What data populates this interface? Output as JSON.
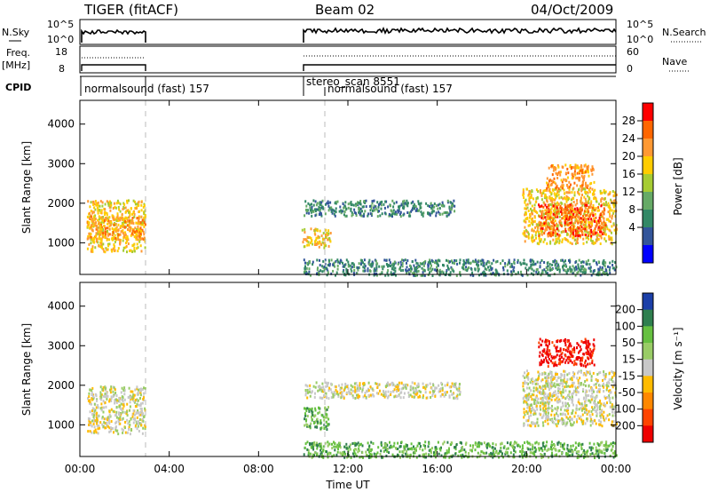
{
  "header": {
    "radar": "TIGER (fitACF)",
    "beam": "Beam 02",
    "date": "04/Oct/2009"
  },
  "top_panels": {
    "nsky_label": "N.Sky",
    "nsearch_label": "N.Search",
    "freq_label_1": "Freq.",
    "freq_label_2": "[MHz]",
    "nave_label": "Nave",
    "cpid_label": "CPID",
    "nsky_ticks": [
      "10^5",
      "10^0"
    ],
    "freq_ticks": [
      "18",
      "8"
    ],
    "nave_ticks": [
      "60",
      "0"
    ],
    "cpid_entries": [
      {
        "label": "normalsound (fast) 157"
      },
      {
        "label": "stereo_scan 8551"
      },
      {
        "label": "normalsound (fast) 157"
      }
    ]
  },
  "xaxis": {
    "title": "Time UT",
    "ticks": [
      "00:00",
      "04:00",
      "08:00",
      "12:00",
      "16:00",
      "20:00",
      "00:00"
    ]
  },
  "power_colorbar": {
    "title": "Power [dB]",
    "ticks": [
      "28",
      "24",
      "20",
      "16",
      "12",
      "8",
      "4"
    ],
    "colors": [
      "#ff0000",
      "#ff6600",
      "#ff9933",
      "#ffcc00",
      "#a6cc33",
      "#66aa66",
      "#338866",
      "#33559a",
      "#0000ff"
    ]
  },
  "velocity_colorbar": {
    "title": "Velocity [m s⁻¹]",
    "ticks": [
      "200",
      "100",
      "50",
      "15",
      "-15",
      "-50",
      "-100",
      "-200"
    ],
    "colors": [
      "#1b3fa8",
      "#2f7f4f",
      "#66c040",
      "#99cc66",
      "#c8c8c8",
      "#ffbb00",
      "#ff8800",
      "#ff4400",
      "#ee0000"
    ]
  },
  "chart_data": [
    {
      "type": "heatmap",
      "title": "Power",
      "xlabel": "Time UT",
      "ylabel": "Slant Range [km]",
      "xlim_hours": [
        0,
        24
      ],
      "ylim_km": [
        200,
        4600
      ],
      "yticks": [
        "1000",
        "2000",
        "3000",
        "4000"
      ],
      "colorbar": "Power [dB]",
      "data_gaps_hours": [
        [
          2.9,
          9.9
        ]
      ],
      "regions": [
        {
          "t": [
            0.3,
            2.9
          ],
          "range_km": [
            800,
            2100
          ],
          "value_db": 18
        },
        {
          "t": [
            0.3,
            2.9
          ],
          "range_km": [
            1100,
            1700
          ],
          "value_db": 24
        },
        {
          "t": [
            9.9,
            11.2
          ],
          "range_km": [
            900,
            1400
          ],
          "value_db": 18
        },
        {
          "t": [
            10.0,
            16.8
          ],
          "range_km": [
            1700,
            2100
          ],
          "value_db": 6
        },
        {
          "t": [
            19.8,
            24.0
          ],
          "range_km": [
            1000,
            2400
          ],
          "value_db": 18
        },
        {
          "t": [
            20.5,
            23.5
          ],
          "range_km": [
            1200,
            2000
          ],
          "value_db": 26
        },
        {
          "t": [
            20.8,
            23.0
          ],
          "range_km": [
            2400,
            3000
          ],
          "value_db": 22
        },
        {
          "t": [
            10.0,
            24.0
          ],
          "range_km": [
            200,
            600
          ],
          "value_db": 8
        }
      ]
    },
    {
      "type": "heatmap",
      "title": "Velocity",
      "xlabel": "Time UT",
      "ylabel": "Slant Range [km]",
      "xlim_hours": [
        0,
        24
      ],
      "ylim_km": [
        200,
        4600
      ],
      "yticks": [
        "1000",
        "2000",
        "3000",
        "4000"
      ],
      "colorbar": "Velocity [m s⁻¹]",
      "data_gaps_hours": [
        [
          2.9,
          9.9
        ]
      ],
      "regions": [
        {
          "t": [
            0.3,
            2.9
          ],
          "range_km": [
            800,
            2000
          ],
          "velocity_ms": 0
        },
        {
          "t": [
            10.0,
            11.2
          ],
          "range_km": [
            900,
            1500
          ],
          "velocity_ms": 60
        },
        {
          "t": [
            10.0,
            17.0
          ],
          "range_km": [
            1700,
            2100
          ],
          "velocity_ms": 0
        },
        {
          "t": [
            20.5,
            23.0
          ],
          "range_km": [
            2500,
            3200
          ],
          "velocity_ms": -200
        },
        {
          "t": [
            19.8,
            24.0
          ],
          "range_km": [
            1000,
            2400
          ],
          "velocity_ms": 0
        },
        {
          "t": [
            10.0,
            24.0
          ],
          "range_km": [
            200,
            600
          ],
          "velocity_ms": 40
        }
      ]
    }
  ]
}
